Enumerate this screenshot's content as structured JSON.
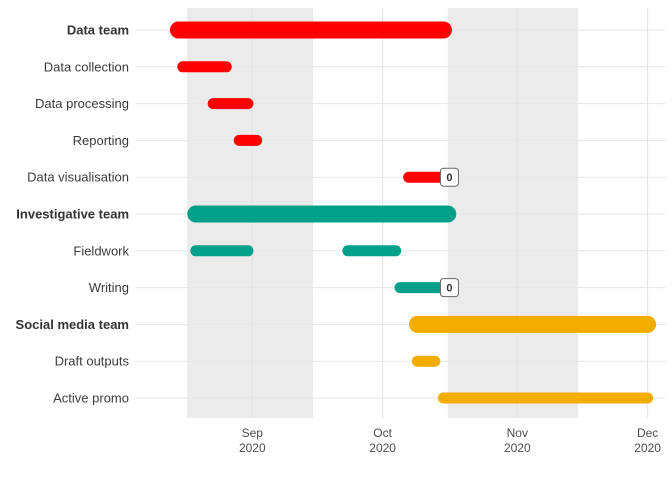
{
  "chart_data": {
    "type": "gantt",
    "x_axis": {
      "type": "date",
      "range": [
        "2020-08-05",
        "2020-12-05"
      ],
      "ticks": [
        {
          "date": "2020-09-01",
          "month": "Sep",
          "year": "2020"
        },
        {
          "date": "2020-10-01",
          "month": "Oct",
          "year": "2020"
        },
        {
          "date": "2020-11-01",
          "month": "Nov",
          "year": "2020"
        },
        {
          "date": "2020-12-01",
          "month": "Dec",
          "year": "2020"
        }
      ]
    },
    "shaded_periods": [
      {
        "start": "2020-08-17",
        "end": "2020-09-15"
      },
      {
        "start": "2020-10-16",
        "end": "2020-11-15"
      }
    ],
    "grid": true,
    "rows": [
      {
        "label": "Data team",
        "header": true,
        "start": "2020-08-15",
        "end": "2020-10-15",
        "color": "#FF0000"
      },
      {
        "label": "Data collection",
        "header": false,
        "start": "2020-08-16",
        "end": "2020-08-26",
        "color": "#FF0000"
      },
      {
        "label": "Data processing",
        "header": false,
        "start": "2020-08-23",
        "end": "2020-08-31",
        "color": "#FF0000"
      },
      {
        "label": "Reporting",
        "header": false,
        "start": "2020-08-29",
        "end": "2020-09-02",
        "color": "#FF0000"
      },
      {
        "label": "Data visualisation",
        "header": false,
        "start": "2020-10-07",
        "end": "2020-10-15",
        "color": "#FF0000",
        "milestone": "0"
      },
      {
        "label": "Investigative team",
        "header": true,
        "start": "2020-08-19",
        "end": "2020-10-16",
        "color": "#00A08A"
      },
      {
        "label": "Fieldwork",
        "header": false,
        "start": "2020-08-19",
        "end": "2020-08-31",
        "color": "#00A08A",
        "start2": "2020-09-23",
        "end2": "2020-10-04"
      },
      {
        "label": "Writing",
        "header": false,
        "start": "2020-10-05",
        "end": "2020-10-15",
        "color": "#00A08A",
        "milestone": "0"
      },
      {
        "label": "Social media team",
        "header": true,
        "start": "2020-10-09",
        "end": "2020-12-01",
        "color": "#F2AD00"
      },
      {
        "label": "Draft outputs",
        "header": false,
        "start": "2020-10-09",
        "end": "2020-10-13",
        "color": "#F2AD00"
      },
      {
        "label": "Active promo",
        "header": false,
        "start": "2020-10-15",
        "end": "2020-12-01",
        "color": "#F2AD00"
      }
    ]
  }
}
